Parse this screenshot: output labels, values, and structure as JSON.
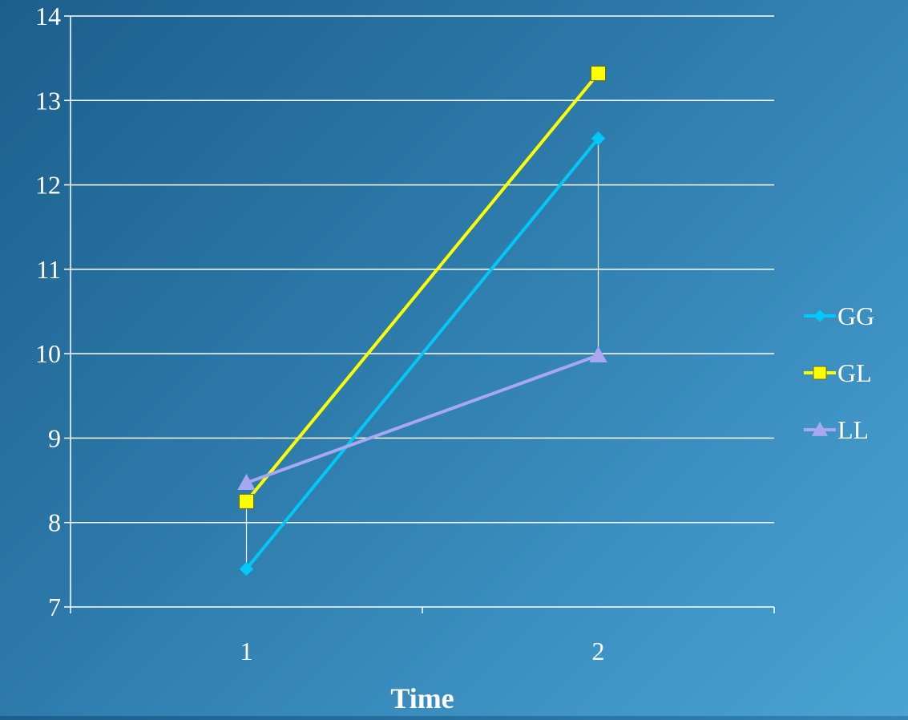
{
  "chart_data": {
    "type": "line",
    "title": "",
    "xlabel": "Time",
    "ylabel": "",
    "categories": [
      "1",
      "2"
    ],
    "ylim": [
      7,
      14
    ],
    "yticks": [
      7,
      8,
      9,
      10,
      11,
      12,
      13,
      14
    ],
    "grid": true,
    "legend_position": "right",
    "series": [
      {
        "name": "GG",
        "values": [
          7.45,
          12.55
        ],
        "color": "#00c8f8",
        "marker": "diamond",
        "error_low": [
          null,
          9.95
        ]
      },
      {
        "name": "GL",
        "values": [
          8.25,
          13.32
        ],
        "color": "#ffff00",
        "marker": "square",
        "error_low": [
          7.5,
          null
        ]
      },
      {
        "name": "LL",
        "values": [
          8.47,
          9.98
        ],
        "color": "#a8a8f0",
        "marker": "triangle"
      }
    ]
  }
}
